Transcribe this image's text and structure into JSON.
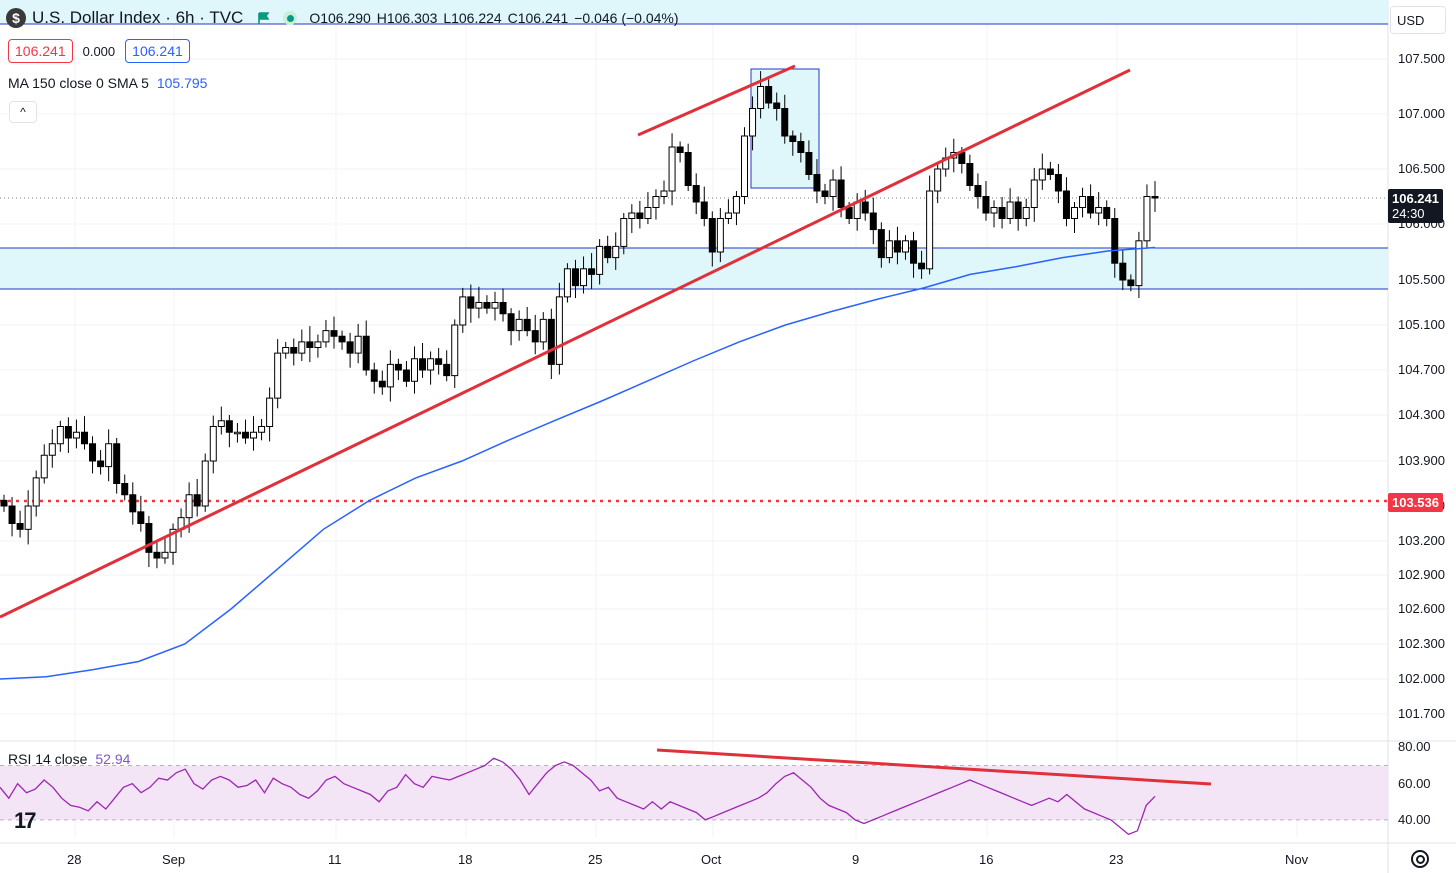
{
  "header": {
    "title": "U.S. Dollar Index · 6h · TVC",
    "logo_glyph": "$",
    "ohlc": {
      "open": "O106.290",
      "high": "H106.303",
      "low": "L106.224",
      "close": "C106.241",
      "change": "−0.046 (−0.04%)"
    },
    "bid": "106.241",
    "spread": "0.000",
    "ask": "106.241",
    "currency": "USD",
    "collapse_glyph": "^"
  },
  "indicators": {
    "ma_label": "MA 150 close 0 SMA 5",
    "ma_value": "105.795",
    "rsi_label": "RSI 14 close",
    "rsi_value": "52.94"
  },
  "price_tags": {
    "current_price": "106.241",
    "countdown": "24:30",
    "horizontal_level": "103.536"
  },
  "colors": {
    "up_candle": "#ffffff",
    "down_candle": "#000000",
    "ma_line": "#2962ff",
    "trendline": "#e0303a",
    "zone_fill": "#dff6fb",
    "zone_border": "#2736c8",
    "rsi_line": "#9c27b0",
    "rsi_band": "#f3e5f5",
    "level_line": "#f23645"
  },
  "chart_data": {
    "type": "candlestick",
    "timeframe": "6h",
    "y_axis_ticks": [
      "107.500",
      "107.000",
      "106.500",
      "106.000",
      "105.500",
      "105.100",
      "104.700",
      "104.300",
      "103.900",
      "103.500",
      "103.200",
      "102.900",
      "102.600",
      "102.300",
      "102.000",
      "101.700"
    ],
    "x_axis_ticks": [
      "28",
      "Sep",
      "11",
      "18",
      "25",
      "Oct",
      "9",
      "16",
      "23",
      "Nov"
    ],
    "ylim": [
      101.6,
      107.8
    ],
    "close_series": [
      103.5,
      103.35,
      103.3,
      103.5,
      103.75,
      103.95,
      104.05,
      104.2,
      104.1,
      104.15,
      104.05,
      103.9,
      103.85,
      104.05,
      103.7,
      103.6,
      103.45,
      103.35,
      103.1,
      103.05,
      103.1,
      103.3,
      103.4,
      103.6,
      103.5,
      103.9,
      104.2,
      104.25,
      104.15,
      104.15,
      104.1,
      104.15,
      104.2,
      104.45,
      104.85,
      104.9,
      104.85,
      104.95,
      104.9,
      104.95,
      105.05,
      105.0,
      104.95,
      104.85,
      105.0,
      104.7,
      104.6,
      104.55,
      104.75,
      104.7,
      104.6,
      104.8,
      104.7,
      104.8,
      104.75,
      104.65,
      105.1,
      105.35,
      105.25,
      105.3,
      105.25,
      105.3,
      105.2,
      105.05,
      105.15,
      105.05,
      104.95,
      105.15,
      104.75,
      105.35,
      105.6,
      105.45,
      105.6,
      105.55,
      105.8,
      105.7,
      105.8,
      106.05,
      106.1,
      106.05,
      106.15,
      106.25,
      106.3,
      106.7,
      106.65,
      106.35,
      106.2,
      106.05,
      105.75,
      106.05,
      106.1,
      106.25,
      106.8,
      107.05,
      107.25,
      107.1,
      107.05,
      106.8,
      106.75,
      106.65,
      106.45,
      106.3,
      106.25,
      106.4,
      106.15,
      106.05,
      106.2,
      106.1,
      105.95,
      105.7,
      105.85,
      105.75,
      105.85,
      105.65,
      105.6,
      106.3,
      106.5,
      106.6,
      106.65,
      106.55,
      106.35,
      106.25,
      106.1,
      106.15,
      106.05,
      106.2,
      106.05,
      106.15,
      106.4,
      106.5,
      106.45,
      106.3,
      106.05,
      106.15,
      106.25,
      106.1,
      106.15,
      106.05,
      105.65,
      105.5,
      105.45,
      105.85,
      106.25,
      106.24
    ],
    "ma150_series": [
      102.0,
      102.02,
      102.08,
      102.15,
      102.3,
      102.6,
      102.95,
      103.3,
      103.55,
      103.75,
      103.9,
      104.08,
      104.25,
      104.42,
      104.6,
      104.78,
      104.95,
      105.1,
      105.22,
      105.33,
      105.43,
      105.55,
      105.62,
      105.7,
      105.76,
      105.79
    ],
    "resistance_zone": [
      105.45,
      105.82
    ],
    "highlight_box": [
      107.4,
      106.3
    ],
    "horizontal_level": 103.536,
    "rsi": {
      "ticks": [
        "80.00",
        "60.00",
        "40.00"
      ],
      "ylim": [
        30,
        83
      ],
      "band": [
        40,
        70
      ],
      "series": [
        58,
        52,
        60,
        55,
        57,
        62,
        58,
        52,
        48,
        47,
        45,
        50,
        46,
        52,
        58,
        60,
        55,
        58,
        63,
        62,
        66,
        68,
        60,
        57,
        62,
        64,
        62,
        58,
        59,
        62,
        55,
        63,
        60,
        58,
        54,
        52,
        56,
        62,
        64,
        60,
        58,
        56,
        54,
        50,
        56,
        58,
        65,
        60,
        58,
        64,
        63,
        62,
        64,
        66,
        68,
        70,
        74,
        72,
        68,
        62,
        54,
        60,
        66,
        70,
        72,
        70,
        66,
        62,
        56,
        58,
        52,
        50,
        48,
        46,
        50,
        46,
        50,
        48,
        46,
        44,
        40,
        42,
        44,
        46,
        48,
        50,
        52,
        55,
        60,
        64,
        66,
        62,
        58,
        52,
        48,
        46,
        44,
        40,
        38,
        40,
        42,
        44,
        46,
        48,
        50,
        52,
        54,
        56,
        58,
        60,
        62,
        60,
        58,
        56,
        54,
        52,
        50,
        48,
        50,
        52,
        50,
        54,
        50,
        46,
        44,
        42,
        40,
        36,
        32,
        34,
        48,
        53
      ]
    }
  }
}
